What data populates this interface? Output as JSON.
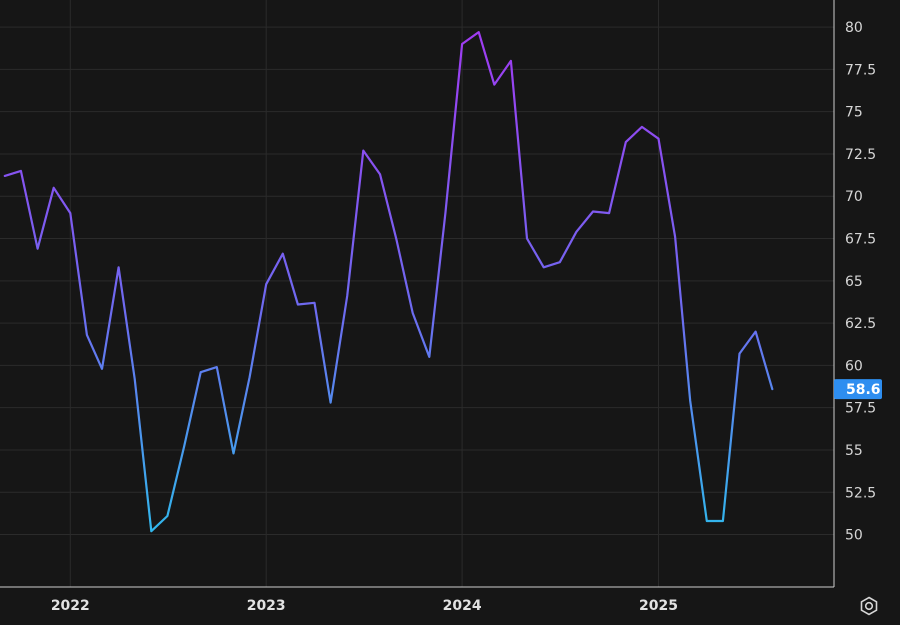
{
  "chart_data": {
    "type": "line",
    "title": "",
    "xlabel": "",
    "ylabel": "",
    "x_tick_labels": [
      "2022",
      "2023",
      "2024",
      "2025"
    ],
    "y_tick_labels": [
      "50",
      "52.5",
      "55",
      "57.5",
      "60",
      "62.5",
      "65",
      "67.5",
      "70",
      "72.5",
      "75",
      "77.5",
      "80"
    ],
    "ylim": [
      46.9,
      81.6
    ],
    "xlim": [
      "2021-08-23",
      "2025-11-24"
    ],
    "grid": true,
    "legend": "none",
    "last_value_label": "58.6",
    "series": [
      {
        "x": [
          "2021-09-01",
          "2021-10-01",
          "2021-11-01",
          "2021-12-01",
          "2022-01-01",
          "2022-02-01",
          "2022-03-01",
          "2022-04-01",
          "2022-05-01",
          "2022-06-01",
          "2022-07-01",
          "2022-08-01",
          "2022-09-01",
          "2022-10-01",
          "2022-11-01",
          "2022-12-01",
          "2023-01-01",
          "2023-02-01",
          "2023-03-01",
          "2023-04-01",
          "2023-05-01",
          "2023-06-01",
          "2023-07-01",
          "2023-08-01",
          "2023-09-01",
          "2023-10-01",
          "2023-11-01",
          "2023-12-01",
          "2024-01-01",
          "2024-02-01",
          "2024-03-01",
          "2024-04-01",
          "2024-05-01",
          "2024-06-01",
          "2024-07-01",
          "2024-08-01",
          "2024-09-01",
          "2024-10-01",
          "2024-11-01",
          "2024-12-01",
          "2025-01-01",
          "2025-02-01",
          "2025-03-01",
          "2025-04-01",
          "2025-05-01",
          "2025-06-01",
          "2025-07-01",
          "2025-08-01"
        ],
        "values": [
          71.2,
          71.5,
          66.9,
          70.5,
          69.0,
          61.8,
          59.8,
          65.8,
          59.2,
          50.2,
          51.1,
          55.2,
          59.6,
          59.9,
          54.8,
          59.3,
          64.8,
          66.6,
          63.6,
          63.7,
          57.8,
          64.1,
          72.7,
          71.3,
          67.4,
          63.1,
          60.5,
          69.0,
          79.0,
          79.7,
          76.6,
          78.0,
          67.5,
          65.8,
          66.1,
          67.9,
          69.1,
          69.0,
          73.2,
          74.1,
          73.4,
          67.6,
          57.9,
          50.8,
          50.8,
          60.7,
          62.0,
          58.6
        ]
      }
    ]
  },
  "colors": {
    "background": "#161616",
    "grid": "#2b2b2b",
    "axis_line": "#cfcfcf",
    "line_high": "#a03bf2",
    "line_mid": "#6e6af0",
    "line_low": "#30b8ec",
    "badge": "#2e8ef0",
    "text": "#d6d6d6"
  },
  "controls": {
    "settings_icon": "gear-icon"
  }
}
